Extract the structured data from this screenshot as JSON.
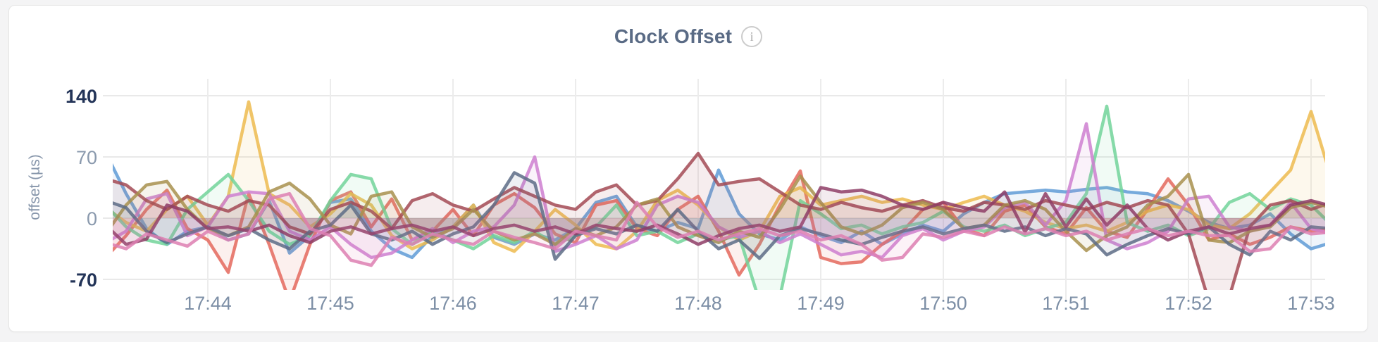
{
  "page": {
    "background_color": "#f4f4f5"
  },
  "card": {
    "background_color": "#ffffff",
    "border_color": "#e5e5e5"
  },
  "header": {
    "title": "Clock Offset",
    "info_icon_glyph": "i"
  },
  "chart_data": {
    "type": "line",
    "title": "Clock Offset",
    "xlabel": "",
    "ylabel": "offset (µs)",
    "ylim": [
      -70,
      140
    ],
    "grid": true,
    "legend": "none",
    "x_tick_labels": [
      "17:44",
      "17:45",
      "17:46",
      "17:47",
      "17:48",
      "17:49",
      "17:50",
      "17:51",
      "17:52",
      "17:53"
    ],
    "y_ticks": [
      {
        "label": "140",
        "value": 140,
        "emphasized": true
      },
      {
        "label": "70",
        "value": 70,
        "emphasized": false
      },
      {
        "label": "0",
        "value": 0,
        "emphasized": false
      },
      {
        "label": "-70",
        "value": -70,
        "emphasized": true
      }
    ],
    "unit": "µs",
    "first_sample_time": "17:43:10",
    "sample_interval_seconds": 10,
    "colors": {
      "title": "#5a6b85",
      "axis_label": "#8695aa",
      "tick_muted": "#8a99ad",
      "tick_emphasized": "#233458",
      "x_tick": "#7d8fa6",
      "grid": "#e9e9e9",
      "info_icon": "#ababab"
    },
    "series": [
      {
        "name": "series-blue",
        "color": "#5F9BD6",
        "values": [
          75,
          28,
          -12,
          -30,
          -15,
          -10,
          -25,
          -18,
          20,
          -40,
          -20,
          18,
          22,
          -15,
          -35,
          -45,
          -20,
          -10,
          15,
          -22,
          -30,
          -18,
          -25,
          -12,
          18,
          25,
          -10,
          -15,
          -5,
          -12,
          55,
          5,
          -18,
          -25,
          -10,
          -20,
          -28,
          -15,
          -30,
          -18,
          -8,
          -15,
          5,
          18,
          28,
          30,
          32,
          30,
          33,
          35,
          30,
          28,
          20,
          8,
          -5,
          -12,
          -8,
          5,
          -18,
          -35,
          -28
        ]
      },
      {
        "name": "series-coral",
        "color": "#E4695D",
        "values": [
          -45,
          -20,
          10,
          32,
          -12,
          -25,
          -62,
          28,
          -30,
          -95,
          -30,
          20,
          30,
          -10,
          22,
          -25,
          -15,
          10,
          -20,
          15,
          28,
          12,
          -18,
          -28,
          15,
          20,
          -12,
          -20,
          10,
          25,
          -15,
          -65,
          -30,
          15,
          54,
          -45,
          -52,
          -50,
          -30,
          -15,
          10,
          18,
          -12,
          -20,
          8,
          15,
          -10,
          -18,
          12,
          -15,
          -22,
          10,
          45,
          15,
          -25,
          -18,
          -30,
          -22,
          -10,
          -15,
          -12
        ]
      },
      {
        "name": "series-gold",
        "color": "#EDBB4F",
        "values": [
          12,
          -5,
          -15,
          10,
          25,
          -8,
          25,
          133,
          28,
          15,
          -10,
          5,
          28,
          15,
          -20,
          -35,
          -25,
          -10,
          15,
          -28,
          -38,
          -15,
          10,
          -8,
          -30,
          -35,
          -15,
          20,
          32,
          15,
          -10,
          -25,
          -15,
          25,
          35,
          15,
          20,
          25,
          18,
          22,
          15,
          10,
          18,
          25,
          15,
          8,
          -5,
          -12,
          -8,
          -15,
          -5,
          8,
          15,
          10,
          -8,
          -12,
          5,
          30,
          55,
          122,
          45
        ]
      },
      {
        "name": "series-green",
        "color": "#72D39A",
        "values": [
          15,
          -10,
          -25,
          -30,
          10,
          30,
          50,
          20,
          -15,
          -30,
          -20,
          20,
          50,
          45,
          -12,
          -30,
          -15,
          -25,
          -35,
          -20,
          -28,
          -15,
          -30,
          -20,
          -10,
          15,
          -20,
          -15,
          -28,
          -18,
          -25,
          -20,
          -95,
          -90,
          20,
          5,
          -12,
          -8,
          -18,
          -10,
          -5,
          8,
          -10,
          -15,
          -8,
          -20,
          -12,
          -5,
          28,
          128,
          -5,
          -15,
          -8,
          -20,
          -12,
          18,
          28,
          10,
          22,
          15,
          -8
        ]
      },
      {
        "name": "series-orchid",
        "color": "#CE7FD0",
        "values": [
          -28,
          -15,
          22,
          28,
          -20,
          -10,
          25,
          30,
          28,
          -15,
          -25,
          -10,
          -30,
          -45,
          -40,
          -25,
          -12,
          -28,
          -15,
          -10,
          15,
          70,
          -38,
          -30,
          -20,
          -35,
          -25,
          15,
          25,
          18,
          -10,
          -22,
          -15,
          -28,
          -18,
          -30,
          -42,
          -38,
          -45,
          -20,
          -12,
          -25,
          -15,
          -10,
          12,
          18,
          -8,
          20,
          108,
          -25,
          -35,
          -28,
          -15,
          22,
          25,
          -10,
          -15,
          -8,
          18,
          -12,
          -18
        ]
      },
      {
        "name": "series-maroon",
        "color": "#A34A55",
        "values": [
          45,
          38,
          20,
          10,
          25,
          15,
          8,
          20,
          15,
          -10,
          -18,
          10,
          18,
          8,
          -12,
          20,
          28,
          15,
          8,
          22,
          35,
          25,
          15,
          10,
          30,
          38,
          15,
          20,
          45,
          74,
          38,
          42,
          45,
          30,
          15,
          10,
          18,
          12,
          8,
          15,
          20,
          12,
          8,
          18,
          15,
          10,
          20,
          15,
          10,
          18,
          12,
          20,
          15,
          -18,
          -95,
          -90,
          -10,
          15,
          20,
          10,
          18
        ]
      },
      {
        "name": "series-olive",
        "color": "#A8904E",
        "values": [
          -18,
          15,
          38,
          42,
          10,
          -12,
          -20,
          -10,
          30,
          40,
          22,
          -8,
          -18,
          25,
          30,
          -10,
          -22,
          -12,
          10,
          -15,
          -25,
          -18,
          -30,
          -12,
          -20,
          -10,
          15,
          22,
          -10,
          -20,
          -28,
          -15,
          -22,
          10,
          48,
          18,
          -10,
          -18,
          -8,
          12,
          18,
          10,
          -12,
          -8,
          15,
          20,
          10,
          -15,
          -37,
          -20,
          -10,
          15,
          25,
          50,
          -25,
          -28,
          -15,
          -10,
          12,
          18,
          12
        ]
      },
      {
        "name": "series-slate",
        "color": "#5D6C86",
        "values": [
          20,
          12,
          -15,
          -28,
          -18,
          -10,
          -20,
          -12,
          -25,
          -35,
          -15,
          -8,
          15,
          -18,
          -25,
          -15,
          -30,
          -18,
          -10,
          15,
          52,
          40,
          -47,
          -20,
          -12,
          -18,
          -8,
          -15,
          10,
          -15,
          -35,
          -25,
          -46,
          -20,
          -12,
          -18,
          -25,
          -30,
          -22,
          -15,
          -10,
          -18,
          -12,
          -8,
          -15,
          -10,
          -20,
          -12,
          -18,
          -42,
          -30,
          -20,
          -12,
          -18,
          -10,
          -30,
          -42,
          -15,
          -25,
          -10,
          -12
        ]
      },
      {
        "name": "series-plum",
        "color": "#8E3D66",
        "values": [
          -8,
          -30,
          -24,
          15,
          8,
          -12,
          -10,
          -15,
          -8,
          -20,
          -28,
          -15,
          -10,
          -18,
          -12,
          -8,
          -15,
          -10,
          -20,
          -12,
          -8,
          -15,
          -10,
          -18,
          -8,
          -12,
          -15,
          -8,
          -18,
          -30,
          -20,
          -12,
          -8,
          -15,
          -10,
          35,
          30,
          32,
          25,
          15,
          10,
          18,
          12,
          8,
          30,
          -16,
          28,
          -10,
          22,
          -8,
          15,
          -12,
          -25,
          -15,
          -10,
          -18,
          -12,
          -8,
          15,
          20,
          14
        ]
      },
      {
        "name": "series-pink",
        "color": "#DD7FB2",
        "values": [
          -28,
          -35,
          -18,
          -25,
          -32,
          -15,
          -25,
          -18,
          22,
          28,
          -12,
          -20,
          -48,
          -54,
          -22,
          -30,
          -18,
          -25,
          -30,
          -15,
          -22,
          -28,
          -35,
          -15,
          -20,
          -25,
          18,
          -10,
          -22,
          -15,
          -25,
          -18,
          -12,
          -20,
          -15,
          -25,
          -20,
          -30,
          -48,
          -45,
          -18,
          -22,
          -15,
          -20,
          -10,
          -18,
          -12,
          -20,
          -15,
          -25,
          -18,
          -12,
          -20,
          -15,
          -20,
          -20,
          -38,
          -35,
          -10,
          -18,
          -16
        ]
      }
    ]
  }
}
